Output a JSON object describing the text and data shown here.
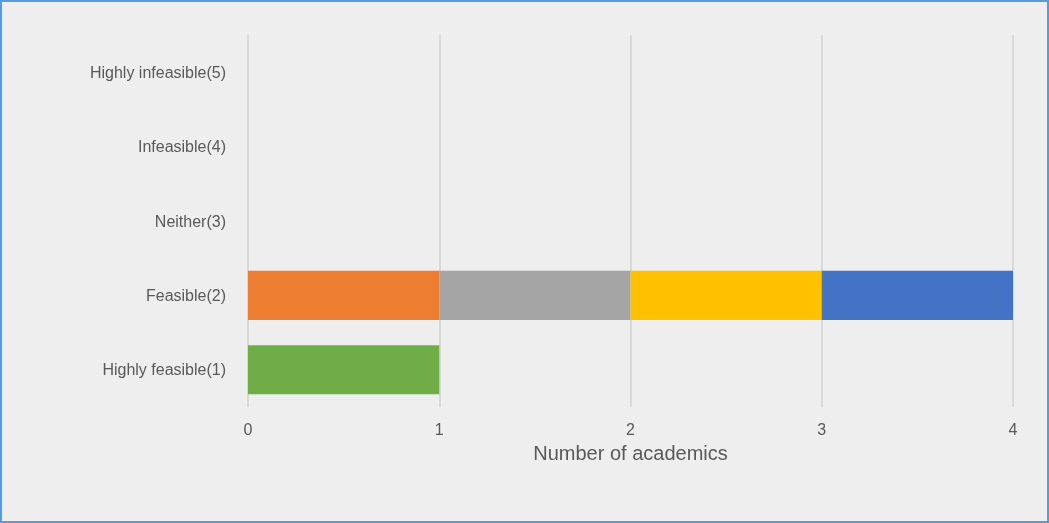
{
  "chart_data": {
    "type": "bar",
    "orientation": "horizontal",
    "stacked": true,
    "xlabel": "Number of academics",
    "categories": [
      "Highly infeasible(5)",
      "Infeasible(4)",
      "Neither(3)",
      "Feasible(2)",
      "Highly feasible(1)"
    ],
    "series": [
      {
        "color": "#70ad47",
        "values": [
          null,
          null,
          null,
          null,
          1
        ]
      },
      {
        "color": "#ed7d31",
        "values": [
          null,
          null,
          null,
          1,
          null
        ]
      },
      {
        "color": "#a5a5a5",
        "values": [
          null,
          null,
          null,
          1,
          null
        ]
      },
      {
        "color": "#ffc000",
        "values": [
          null,
          null,
          null,
          1,
          null
        ]
      },
      {
        "color": "#4472c4",
        "values": [
          null,
          null,
          null,
          1,
          null
        ]
      }
    ],
    "xlim": [
      0,
      4
    ],
    "xticks": [
      0,
      1,
      2,
      3,
      4
    ],
    "grid": "x"
  }
}
